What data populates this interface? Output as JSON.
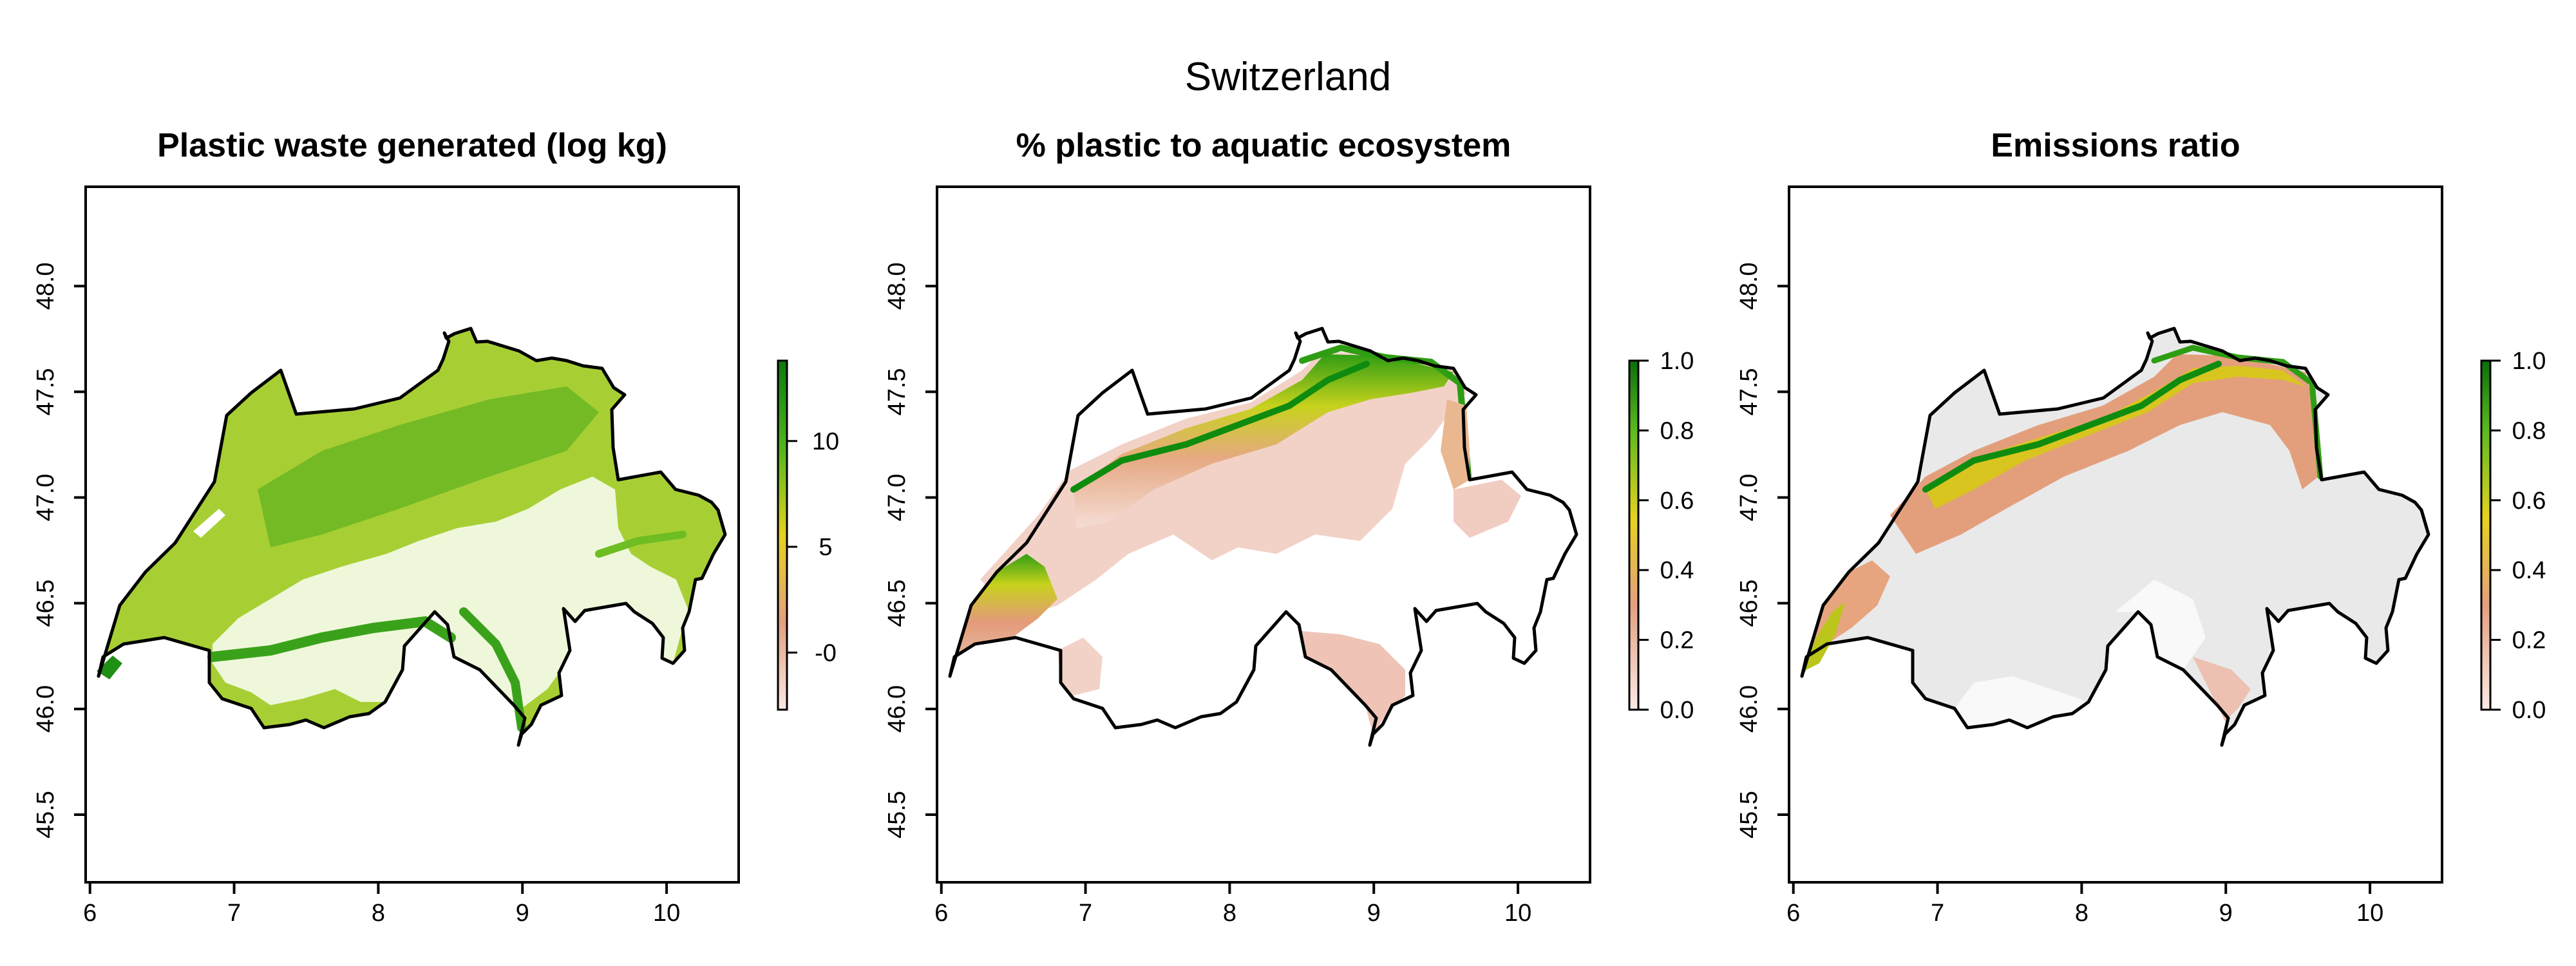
{
  "figure_title": "Switzerland",
  "panels": [
    {
      "title": "Plastic waste generated (log kg)",
      "color_scale": {
        "ticks": [
          "-0",
          "5",
          "10"
        ],
        "tick_values": [
          0,
          5,
          10
        ],
        "range": [
          -2.7,
          13.8
        ]
      }
    },
    {
      "title": "% plastic to aquatic ecosystem",
      "color_scale": {
        "ticks": [
          "0.0",
          "0.2",
          "0.4",
          "0.6",
          "0.8",
          "1.0"
        ],
        "tick_values": [
          0,
          0.2,
          0.4,
          0.6,
          0.8,
          1.0
        ],
        "range": [
          0,
          1
        ]
      }
    },
    {
      "title": "Emissions ratio",
      "color_scale": {
        "ticks": [
          "0.0",
          "0.2",
          "0.4",
          "0.6",
          "0.8",
          "1.0"
        ],
        "tick_values": [
          0,
          0.2,
          0.4,
          0.6,
          0.8,
          1.0
        ],
        "range": [
          0,
          1
        ]
      }
    }
  ],
  "axes": {
    "x_ticks": [
      "6",
      "7",
      "8",
      "9",
      "10"
    ],
    "x_values": [
      6,
      7,
      8,
      9,
      10
    ],
    "y_ticks": [
      "45.5",
      "46.0",
      "46.5",
      "47.0",
      "47.5",
      "48.0"
    ],
    "y_values": [
      45.5,
      46.0,
      46.5,
      47.0,
      47.5,
      48.0
    ],
    "xlim": [
      5.97,
      10.5
    ],
    "ylim": [
      45.18,
      48.47
    ]
  },
  "colors": {
    "low": "#f7e1dc",
    "salmon": "#e3a07f",
    "yellow": "#e6d21d",
    "green": "#0f8c0f",
    "dark_green": "#0b5d0b",
    "gray": "#e9e9e9",
    "outline": "#000000"
  }
}
